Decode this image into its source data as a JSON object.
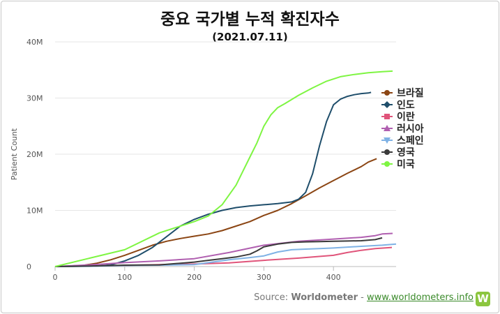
{
  "chart_data": {
    "type": "line",
    "title": "중요 국가별 누적 확진자수",
    "subtitle": "(2021.07.11)",
    "ylabel": "Patient Count",
    "xlabel": "",
    "xlim": [
      0,
      490
    ],
    "ylim": [
      0,
      40000000
    ],
    "x_ticks": [
      0,
      100,
      200,
      300,
      400
    ],
    "y_ticks": [
      0,
      10000000,
      20000000,
      30000000,
      40000000
    ],
    "y_tick_labels": [
      "0",
      "10M",
      "20M",
      "30M",
      "40M"
    ],
    "legend_position": "right",
    "series": [
      {
        "name": "브라질",
        "color": "#8b4513",
        "marker": "circle",
        "x": [
          0,
          40,
          60,
          80,
          100,
          120,
          140,
          160,
          180,
          200,
          220,
          240,
          260,
          280,
          300,
          320,
          340,
          360,
          380,
          400,
          420,
          440,
          450,
          462
        ],
        "y": [
          0,
          200000,
          600000,
          1200000,
          2000000,
          2900000,
          3800000,
          4500000,
          5000000,
          5400000,
          5800000,
          6400000,
          7200000,
          8000000,
          9100000,
          10000000,
          11200000,
          12600000,
          14000000,
          15300000,
          16600000,
          17800000,
          18600000,
          19200000
        ]
      },
      {
        "name": "인도",
        "color": "#1f4e6b",
        "marker": "diamond",
        "x": [
          0,
          60,
          80,
          100,
          120,
          140,
          160,
          180,
          200,
          220,
          240,
          260,
          280,
          300,
          320,
          340,
          350,
          360,
          370,
          380,
          390,
          400,
          410,
          420,
          430,
          440,
          450,
          454
        ],
        "y": [
          0,
          100000,
          300000,
          1000000,
          2000000,
          3400000,
          5300000,
          7200000,
          8400000,
          9300000,
          10000000,
          10500000,
          10800000,
          11000000,
          11200000,
          11500000,
          12000000,
          13200000,
          16500000,
          21500000,
          25800000,
          28800000,
          29800000,
          30300000,
          30600000,
          30800000,
          30900000,
          31000000
        ]
      },
      {
        "name": "이란",
        "color": "#e0547a",
        "marker": "square",
        "x": [
          0,
          50,
          100,
          150,
          200,
          250,
          300,
          350,
          400,
          420,
          440,
          460,
          484
        ],
        "y": [
          0,
          100000,
          200000,
          350000,
          450000,
          650000,
          1100000,
          1500000,
          2000000,
          2500000,
          2900000,
          3200000,
          3400000
        ]
      },
      {
        "name": "러시아",
        "color": "#b05fb0",
        "marker": "triangle",
        "x": [
          0,
          50,
          100,
          150,
          200,
          250,
          300,
          350,
          400,
          440,
          460,
          470,
          485
        ],
        "y": [
          0,
          300000,
          700000,
          1000000,
          1400000,
          2500000,
          3800000,
          4500000,
          4900000,
          5200000,
          5500000,
          5800000,
          5900000
        ]
      },
      {
        "name": "스페인",
        "color": "#7fb2e5",
        "marker": "triangle-down",
        "x": [
          0,
          50,
          100,
          150,
          200,
          250,
          280,
          300,
          320,
          340,
          360,
          380,
          400,
          440,
          470,
          490
        ],
        "y": [
          0,
          50000,
          200000,
          250000,
          350000,
          1200000,
          1600000,
          1900000,
          2600000,
          3000000,
          3100000,
          3200000,
          3300000,
          3600000,
          3800000,
          4000000
        ]
      },
      {
        "name": "영국",
        "color": "#3a3a3a",
        "marker": "circle",
        "x": [
          0,
          50,
          100,
          150,
          200,
          220,
          240,
          260,
          280,
          290,
          300,
          320,
          340,
          360,
          380,
          400,
          420,
          440,
          460,
          470
        ],
        "y": [
          0,
          100000,
          250000,
          300000,
          800000,
          1100000,
          1400000,
          1700000,
          2200000,
          2800000,
          3500000,
          4000000,
          4300000,
          4400000,
          4450000,
          4500000,
          4550000,
          4600000,
          4800000,
          5100000
        ]
      },
      {
        "name": "미국",
        "color": "#7ef542",
        "marker": "circle",
        "x": [
          0,
          50,
          100,
          150,
          200,
          220,
          240,
          260,
          270,
          280,
          290,
          300,
          310,
          320,
          330,
          350,
          370,
          390,
          410,
          430,
          450,
          470,
          485
        ],
        "y": [
          0,
          1500000,
          3000000,
          6000000,
          8000000,
          9000000,
          11000000,
          14500000,
          17000000,
          19500000,
          22000000,
          25000000,
          27000000,
          28300000,
          29000000,
          30500000,
          31800000,
          33000000,
          33800000,
          34200000,
          34500000,
          34700000,
          34800000
        ]
      }
    ]
  },
  "source": {
    "prefix": "Source:",
    "name": "Worldometer",
    "separator": "-",
    "link": "www.worldometers.info",
    "logo_letter": "W"
  }
}
